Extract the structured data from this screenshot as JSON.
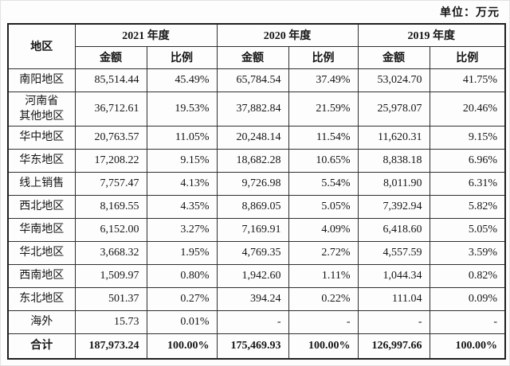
{
  "page": {
    "unit_label": "单位：万元"
  },
  "table": {
    "region_header": "地区",
    "year_groups": [
      {
        "year": "2021 年度",
        "sub": [
          "金额",
          "比例"
        ]
      },
      {
        "year": "2020 年度",
        "sub": [
          "金额",
          "比例"
        ]
      },
      {
        "year": "2019 年度",
        "sub": [
          "金额",
          "比例"
        ]
      }
    ],
    "rows": [
      {
        "region": "南阳地区",
        "values": [
          "85,514.44",
          "45.49%",
          "65,784.54",
          "37.49%",
          "53,024.70",
          "41.75%"
        ]
      },
      {
        "region": "河南省\n其他地区",
        "values": [
          "36,712.61",
          "19.53%",
          "37,882.84",
          "21.59%",
          "25,978.07",
          "20.46%"
        ]
      },
      {
        "region": "华中地区",
        "values": [
          "20,763.57",
          "11.05%",
          "20,248.14",
          "11.54%",
          "11,620.31",
          "9.15%"
        ]
      },
      {
        "region": "华东地区",
        "values": [
          "17,208.22",
          "9.15%",
          "18,682.28",
          "10.65%",
          "8,838.18",
          "6.96%"
        ]
      },
      {
        "region": "线上销售",
        "values": [
          "7,757.47",
          "4.13%",
          "9,726.98",
          "5.54%",
          "8,011.90",
          "6.31%"
        ]
      },
      {
        "region": "西北地区",
        "values": [
          "8,169.55",
          "4.35%",
          "8,869.05",
          "5.05%",
          "7,392.94",
          "5.82%"
        ]
      },
      {
        "region": "华南地区",
        "values": [
          "6,152.00",
          "3.27%",
          "7,169.91",
          "4.09%",
          "6,418.60",
          "5.05%"
        ]
      },
      {
        "region": "华北地区",
        "values": [
          "3,668.32",
          "1.95%",
          "4,769.35",
          "2.72%",
          "4,557.59",
          "3.59%"
        ]
      },
      {
        "region": "西南地区",
        "values": [
          "1,509.97",
          "0.80%",
          "1,942.60",
          "1.11%",
          "1,044.34",
          "0.82%"
        ]
      },
      {
        "region": "东北地区",
        "values": [
          "501.37",
          "0.27%",
          "394.24",
          "0.22%",
          "111.04",
          "0.09%"
        ]
      },
      {
        "region": "海外",
        "values": [
          "15.73",
          "0.01%",
          "-",
          "-",
          "-",
          "-"
        ]
      }
    ],
    "total_row": {
      "region": "合计",
      "values": [
        "187,973.24",
        "100.00%",
        "175,469.93",
        "100.00%",
        "126,997.66",
        "100.00%"
      ]
    }
  }
}
